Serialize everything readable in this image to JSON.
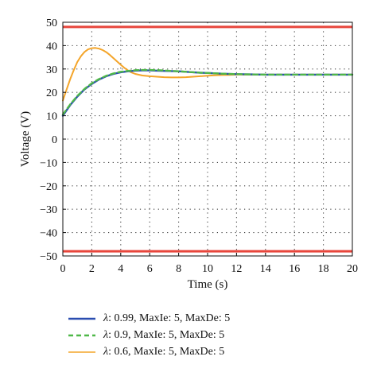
{
  "chart_data": {
    "type": "line",
    "xlabel": "Time (s)",
    "ylabel": "Voltage (V)",
    "xlim": [
      0,
      20
    ],
    "ylim": [
      -50,
      50
    ],
    "xticks": [
      0,
      2,
      4,
      6,
      8,
      10,
      12,
      14,
      16,
      18,
      20
    ],
    "yticks": [
      50,
      40,
      30,
      20,
      10,
      0,
      -10,
      -20,
      -30,
      -40,
      -50
    ],
    "xtick_labels": [
      "0",
      "2",
      "4",
      "6",
      "8",
      "10",
      "12",
      "14",
      "16",
      "18",
      "20"
    ],
    "ytick_labels": [
      "50",
      "40",
      "30",
      "20",
      "10",
      "0",
      "−10",
      "−20",
      "−30",
      "−40",
      "−50"
    ],
    "grid": true,
    "grid_style": "dotted",
    "legend_position": "below",
    "limits": [
      {
        "value": 48,
        "color": "#e8463c"
      },
      {
        "value": -48,
        "color": "#e8463c"
      }
    ],
    "series": [
      {
        "name": "λ: 0.99, MaxIe: 5, MaxDe: 5",
        "legend_symbol": "λ",
        "legend_rest": ": 0.99, MaxIe: 5, MaxDe: 5",
        "color": "#2a4db0",
        "style": "solid",
        "x": [
          0,
          0.5,
          1,
          1.5,
          2,
          2.5,
          3,
          3.5,
          4,
          4.5,
          5,
          5.5,
          6,
          6.5,
          7,
          7.5,
          8,
          8.5,
          9,
          9.5,
          10,
          11,
          12,
          13,
          14,
          16,
          18,
          20
        ],
        "y": [
          10,
          14.5,
          18.2,
          21.3,
          23.6,
          25.5,
          26.9,
          27.9,
          28.6,
          29.0,
          29.3,
          29.4,
          29.4,
          29.3,
          29.2,
          29.1,
          29.0,
          28.8,
          28.6,
          28.4,
          28.3,
          28.0,
          27.8,
          27.7,
          27.6,
          27.6,
          27.6,
          27.6
        ]
      },
      {
        "name": "λ: 0.9, MaxIe: 5, MaxDe: 5",
        "legend_symbol": "λ",
        "legend_rest": ": 0.9, MaxIe: 5, MaxDe: 5",
        "color": "#4fb848",
        "style": "dashed",
        "x": [
          0,
          0.5,
          1,
          1.5,
          2,
          2.5,
          3,
          3.5,
          4,
          4.5,
          5,
          5.5,
          6,
          6.5,
          7,
          7.5,
          8,
          8.5,
          9,
          9.5,
          10,
          11,
          12,
          13,
          14,
          16,
          18,
          20
        ],
        "y": [
          10.5,
          14.8,
          18.5,
          21.5,
          23.9,
          25.7,
          27.1,
          28.1,
          28.8,
          29.2,
          29.5,
          29.6,
          29.6,
          29.5,
          29.4,
          29.2,
          29.0,
          28.8,
          28.6,
          28.4,
          28.3,
          28.0,
          27.8,
          27.7,
          27.6,
          27.6,
          27.6,
          27.6
        ]
      },
      {
        "name": "λ: 0.6, MaxIe: 5, MaxDe: 5",
        "legend_symbol": "λ",
        "legend_rest": ": 0.6, MaxIe: 5, MaxDe: 5",
        "color": "#f4a52a",
        "style": "solid",
        "x": [
          0,
          0.25,
          0.5,
          0.75,
          1,
          1.25,
          1.5,
          1.75,
          2,
          2.25,
          2.5,
          2.75,
          3,
          3.25,
          3.5,
          3.75,
          4,
          4.25,
          4.5,
          4.75,
          5,
          5.5,
          6,
          6.5,
          7,
          7.5,
          8,
          8.5,
          9,
          9.5,
          10,
          10.5,
          11,
          11.5,
          12,
          13,
          14,
          16,
          18,
          20
        ],
        "y": [
          16.5,
          21,
          25.5,
          29.5,
          33,
          35.5,
          37.3,
          38.4,
          38.9,
          39.0,
          38.7,
          38.1,
          37.2,
          36.0,
          34.6,
          33.2,
          31.8,
          30.5,
          29.4,
          28.5,
          27.9,
          27.2,
          26.9,
          26.7,
          26.5,
          26.4,
          26.4,
          26.5,
          26.7,
          26.9,
          27.1,
          27.3,
          27.4,
          27.5,
          27.6,
          27.6,
          27.6,
          27.6,
          27.6,
          27.6
        ]
      }
    ]
  }
}
